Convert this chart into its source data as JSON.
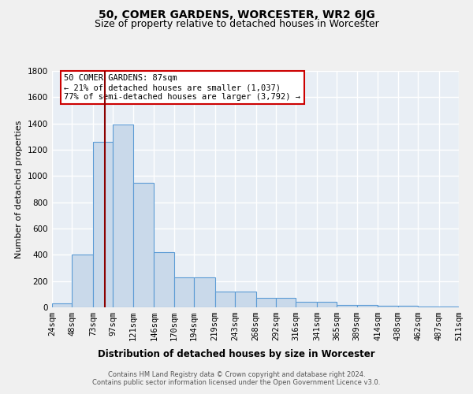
{
  "title1": "50, COMER GARDENS, WORCESTER, WR2 6JG",
  "title2": "Size of property relative to detached houses in Worcester",
  "xlabel": "Distribution of detached houses by size in Worcester",
  "ylabel": "Number of detached properties",
  "bin_edges": [
    24,
    48,
    73,
    97,
    121,
    146,
    170,
    194,
    219,
    243,
    268,
    292,
    316,
    341,
    365,
    389,
    414,
    438,
    462,
    487,
    511
  ],
  "bar_heights": [
    30,
    400,
    1260,
    1390,
    950,
    420,
    230,
    230,
    120,
    120,
    75,
    75,
    40,
    40,
    20,
    20,
    15,
    15,
    5,
    5
  ],
  "bar_facecolor": "#c9d9ea",
  "bar_edgecolor": "#5b9bd5",
  "background_color": "#e8eef5",
  "grid_color": "#ffffff",
  "vline_x": 87,
  "vline_color": "#8b0000",
  "annotation_text": "50 COMER GARDENS: 87sqm\n← 21% of detached houses are smaller (1,037)\n77% of semi-detached houses are larger (3,792) →",
  "annotation_box_color": "#ffffff",
  "annotation_box_edgecolor": "#cc0000",
  "ylim": [
    0,
    1800
  ],
  "yticks": [
    0,
    200,
    400,
    600,
    800,
    1000,
    1200,
    1400,
    1600,
    1800
  ],
  "footnote": "Contains HM Land Registry data © Crown copyright and database right 2024.\nContains public sector information licensed under the Open Government Licence v3.0.",
  "title1_fontsize": 10,
  "title2_fontsize": 9,
  "xlabel_fontsize": 8.5,
  "ylabel_fontsize": 8,
  "tick_fontsize": 7.5,
  "annotation_fontsize": 7.5,
  "footnote_fontsize": 6
}
